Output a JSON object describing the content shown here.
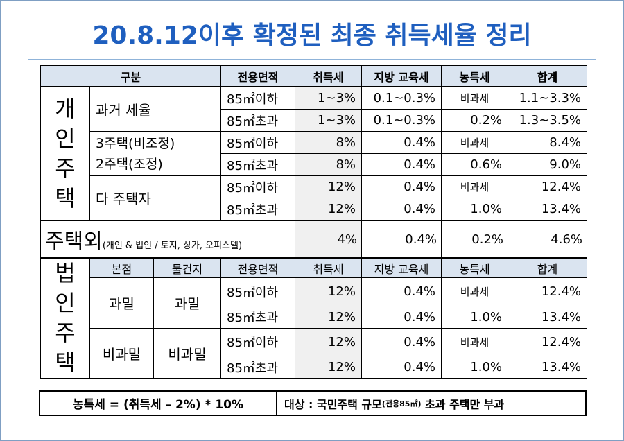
{
  "title": "20.8.12이후 확정된 최종 취득세율 정리",
  "header": {
    "category": "구분",
    "area": "전용면적",
    "acq_tax": "취득세",
    "edu_tax": "지방 교육세",
    "rural_tax": "농특세",
    "total": "합계"
  },
  "individual": {
    "group_label": [
      "개",
      "인",
      "주",
      "택"
    ],
    "categories": [
      {
        "label": [
          "과거 세율"
        ],
        "rows": [
          {
            "area": "85㎡이하",
            "acq": "1~3%",
            "edu": "0.1~0.3%",
            "rural": "비과세",
            "total": "1.1~3.3%"
          },
          {
            "area": "85㎡초과",
            "acq": "1~3%",
            "edu": "0.1~0.3%",
            "rural": "0.2%",
            "total": "1.3~3.5%"
          }
        ]
      },
      {
        "label": [
          "3주택(비조정)",
          "2주택(조정)"
        ],
        "rows": [
          {
            "area": "85㎡이하",
            "acq": "8%",
            "edu": "0.4%",
            "rural": "비과세",
            "total": "8.4%"
          },
          {
            "area": "85㎡초과",
            "acq": "8%",
            "edu": "0.4%",
            "rural": "0.6%",
            "total": "9.0%"
          }
        ]
      },
      {
        "label": [
          "다 주택자"
        ],
        "rows": [
          {
            "area": "85㎡이하",
            "acq": "12%",
            "edu": "0.4%",
            "rural": "비과세",
            "total": "12.4%"
          },
          {
            "area": "85㎡초과",
            "acq": "12%",
            "edu": "0.4%",
            "rural": "1.0%",
            "total": "13.4%"
          }
        ]
      }
    ]
  },
  "non_housing": {
    "label": "주택외",
    "note": "(개인 & 법인 / 토지, 상가, 오피스텔)",
    "acq": "4%",
    "edu": "0.4%",
    "rural": "0.2%",
    "total": "4.6%"
  },
  "corporate": {
    "group_label": [
      "법",
      "인",
      "주",
      "택"
    ],
    "header": {
      "hq": "본점",
      "property": "물건지",
      "area": "전용면적",
      "acq_tax": "취득세",
      "edu_tax": "지방 교육세",
      "rural_tax": "농특세",
      "total": "합계"
    },
    "groups": [
      {
        "hq": "과밀",
        "property": "과밀",
        "rows": [
          {
            "area": "85㎡이하",
            "acq": "12%",
            "edu": "0.4%",
            "rural": "비과세",
            "total": "12.4%"
          },
          {
            "area": "85㎡초과",
            "acq": "12%",
            "edu": "0.4%",
            "rural": "1.0%",
            "total": "13.4%"
          }
        ]
      },
      {
        "hq": "비과밀",
        "property": "비과밀",
        "rows": [
          {
            "area": "85㎡이하",
            "acq": "12%",
            "edu": "0.4%",
            "rural": "비과세",
            "total": "12.4%"
          },
          {
            "area": "85㎡초과",
            "acq": "12%",
            "edu": "0.4%",
            "rural": "1.0%",
            "total": "13.4%"
          }
        ]
      }
    ]
  },
  "footer": {
    "formula": "농특세 = (취득세 – 2%) * 10%",
    "target_prefix": "대상 : 국민주택 규모",
    "target_small": "(전용85㎡)",
    "target_suffix": " 초과 주택만 부과"
  }
}
